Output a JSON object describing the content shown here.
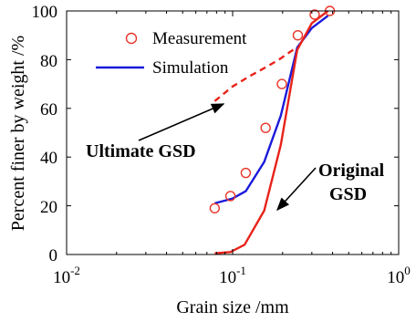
{
  "chart_data": {
    "type": "line",
    "title": "",
    "xlabel": "Grain size /mm",
    "ylabel": "Percent finer by weight /%",
    "xscale": "log",
    "xlim": [
      0.01,
      1
    ],
    "ylim": [
      0,
      100
    ],
    "x_tick_values": [
      0.01,
      0.1,
      1
    ],
    "x_tick_labels": [
      {
        "base": "10",
        "exp": "-2"
      },
      {
        "base": "10",
        "exp": "-1"
      },
      {
        "base": "10",
        "exp": "0"
      }
    ],
    "y_tick_values": [
      0,
      20,
      40,
      60,
      80,
      100
    ],
    "y_tick_labels": [
      "0",
      "20",
      "40",
      "60",
      "80",
      "100"
    ],
    "grid": false,
    "legend": {
      "position": "top-right",
      "entries": [
        {
          "label": "Measurement",
          "style": "circle-marker",
          "color": "#e8352a"
        },
        {
          "label": "Simulation",
          "style": "line",
          "color": "#1a1adb"
        }
      ]
    },
    "series": [
      {
        "name": "Measurement",
        "style": "markers",
        "color": "#e8352a",
        "x": [
          0.078,
          0.097,
          0.12,
          0.158,
          0.198,
          0.247,
          0.312,
          0.385
        ],
        "y": [
          19,
          24,
          33.5,
          52,
          70,
          90,
          98.5,
          100
        ]
      },
      {
        "name": "Simulation",
        "style": "line",
        "color": "#1a1adb",
        "x": [
          0.078,
          0.1,
          0.12,
          0.155,
          0.195,
          0.245,
          0.3,
          0.375
        ],
        "y": [
          21,
          23,
          26,
          38,
          57,
          85,
          93,
          98
        ]
      },
      {
        "name": "Original GSD",
        "style": "line",
        "color": "#e8231a",
        "x": [
          0.078,
          0.097,
          0.118,
          0.155,
          0.195,
          0.245,
          0.3,
          0.375
        ],
        "y": [
          0.5,
          1,
          4,
          18,
          45,
          84,
          95,
          100
        ]
      },
      {
        "name": "Ultimate GSD",
        "style": "dashed-line",
        "color": "#e8231a",
        "x": [
          0.078,
          0.1,
          0.125,
          0.155,
          0.19,
          0.225,
          0.245
        ],
        "y": [
          63,
          69,
          73,
          76.5,
          80,
          83.5,
          85
        ]
      }
    ],
    "annotations": [
      {
        "text": "Ultimate GSD",
        "arrow_to": [
          0.075,
          63
        ]
      },
      {
        "text": "Original",
        "text2": "GSD",
        "arrow_to": [
          0.154,
          18
        ]
      }
    ]
  }
}
